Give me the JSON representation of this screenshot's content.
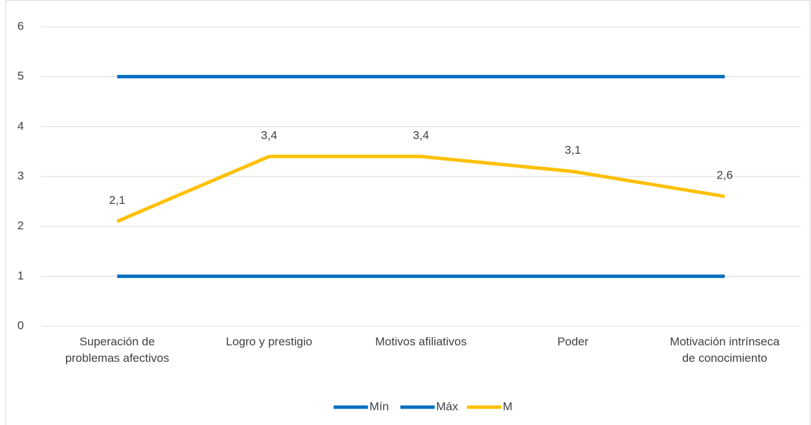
{
  "chart_data": {
    "type": "line",
    "categories": [
      "Superación de\nproblemas afectivos",
      "Logro y prestigio",
      "Motivos afiliativos",
      "Poder",
      "Motivación intrínseca\nde conocimiento"
    ],
    "series": [
      {
        "name": "Mín",
        "color": "#0070c0",
        "values": [
          1,
          1,
          1,
          1,
          1
        ]
      },
      {
        "name": "Máx",
        "color": "#0070c0",
        "values": [
          5,
          5,
          5,
          5,
          5
        ]
      },
      {
        "name": "M",
        "color": "#ffc000",
        "values": [
          2.1,
          3.4,
          3.4,
          3.1,
          2.6
        ],
        "value_labels": [
          "2,1",
          "3,4",
          "3,4",
          "3,1",
          "2,6"
        ]
      }
    ],
    "ylim": [
      0,
      6
    ],
    "yticks": [
      0,
      1,
      2,
      3,
      4,
      5,
      6
    ],
    "grid": true,
    "legend": "bottom"
  }
}
